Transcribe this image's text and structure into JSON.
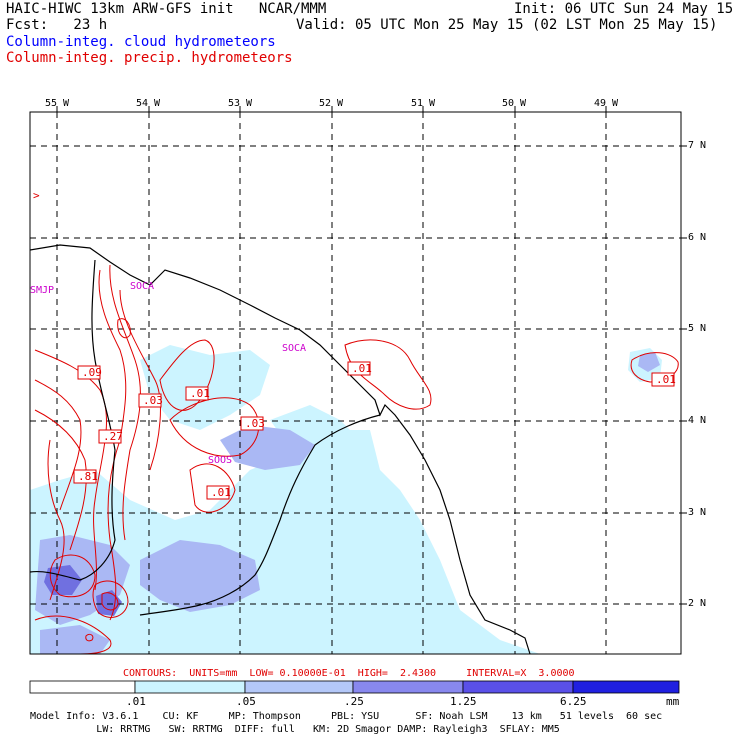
{
  "header": {
    "title_left": "HAIC-HIWC 13km ARW-GFS init   NCAR/MMM",
    "init": "Init: 06 UTC Sun 24 May 15",
    "fcst": "Fcst:   23 h",
    "valid": "Valid: 05 UTC Mon 25 May 15 (02 LST Mon 25 May 15)",
    "field_cloud": "Column-integ. cloud hydrometeors",
    "field_precip": "Column-integ. precip. hydrometeors"
  },
  "map": {
    "lon_labels": [
      "55 W",
      "54 W",
      "53 W",
      "52 W",
      "51 W",
      "50 W",
      "49 W"
    ],
    "lat_labels": [
      "7 N",
      "6 N",
      "5 N",
      "4 N",
      "3 N",
      "2 N"
    ],
    "stations": [
      "SMJP",
      "SOCA",
      "SOCA",
      "SOOS"
    ],
    "arrow_mark": ">",
    "contour_labels": [
      ".09",
      ".03",
      ".01",
      ".27",
      ".81",
      ".03",
      ".01",
      ".01",
      ".01"
    ]
  },
  "contours_info": "CONTOURS:  UNITS=mm  LOW= 0.10000E-01  HIGH=  2.4300     INTERVAL=X  3.0000",
  "colorbar": {
    "labels": [
      ".01",
      ".05",
      ".25",
      "1.25",
      "6.25",
      "mm"
    ],
    "colors": [
      "#ffffff",
      "#ccf4ff",
      "#b4c8f8",
      "#8888ee",
      "#5a50e8",
      "#2020e0"
    ]
  },
  "model_info": {
    "line1": "Model Info: V3.6.1    CU: KF     MP: Thompson     PBL: YSU      SF: Noah LSM    13 km   51 levels  60 sec",
    "line2": "           LW: RRTMG   SW: RRTMG  DIFF: full   KM: 2D Smagor DAMP: Rayleigh3  SFLAY: MM5"
  },
  "colors": {
    "cloud": "#ccf4ff",
    "cloud_mid": "#aab8f4",
    "cloud_strong": "#7070e0",
    "precip_contour": "#e00000",
    "station": "#cc00cc",
    "coast": "#000000"
  }
}
